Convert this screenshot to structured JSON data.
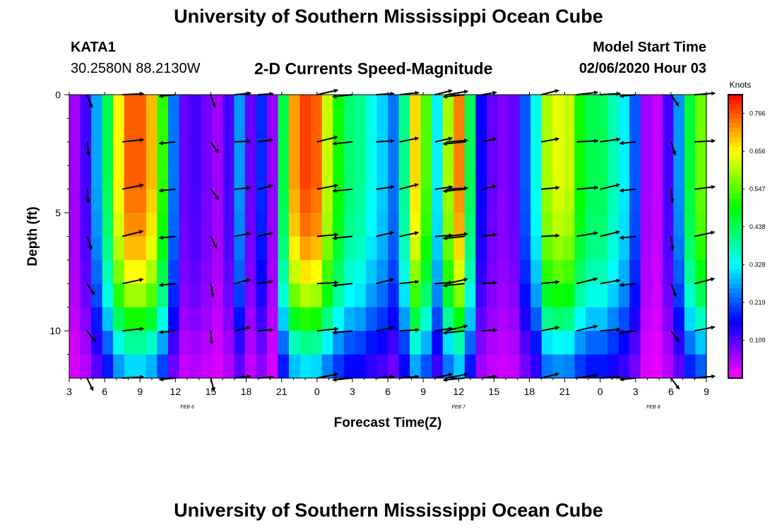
{
  "header": {
    "title": "University of Southern Mississippi Ocean Cube",
    "station": "KATA1",
    "coordinates": "30.2580N 88.2130W",
    "subtitle": "2-D Currents Speed-Magnitude",
    "model_start_label": "Model Start Time",
    "model_start_value": "02/06/2020 Hour 03"
  },
  "footer": {
    "title": "University of Southern Mississippi Ocean Cube"
  },
  "chart_data": {
    "type": "heatmap",
    "xlabel": "Forecast Time(Z)",
    "ylabel": "Depth (ft)",
    "colorbar_label": "Knots",
    "colorbar_ticks": [
      "0.109",
      "0.219",
      "0.328",
      "0.438",
      "0.547",
      "0.656",
      "0.766"
    ],
    "colorbar_range": [
      0,
      0.82
    ],
    "x_tick_labels": [
      "3",
      "6",
      "9",
      "12",
      "15",
      "18",
      "21",
      "0",
      "3",
      "6",
      "9",
      "12",
      "15",
      "18",
      "21",
      "0",
      "3",
      "6",
      "9"
    ],
    "x_range_hours": [
      0,
      54
    ],
    "day_labels": [
      {
        "text": "FEB 6",
        "hour": 10
      },
      {
        "text": "FEB 7",
        "hour": 33
      },
      {
        "text": "FEB 8",
        "hour": 49.5
      }
    ],
    "y_tick_labels": [
      "0",
      "5",
      "10"
    ],
    "y_ticks_ft": [
      0,
      5,
      10
    ],
    "y_range_ft": [
      0,
      12
    ],
    "speed_profile_knots": [
      0.06,
      0.12,
      0.27,
      0.44,
      0.66,
      0.76,
      0.76,
      0.7,
      0.52,
      0.24,
      0.1,
      0.12,
      0.09,
      0.06,
      0.12,
      0.26,
      0.1,
      0.19,
      0.07,
      0.45,
      0.72,
      0.78,
      0.76,
      0.62,
      0.5,
      0.42,
      0.4,
      0.34,
      0.3,
      0.24,
      0.4,
      0.68,
      0.54,
      0.32,
      0.6,
      0.74,
      0.44,
      0.16,
      0.1,
      0.08,
      0.1,
      0.22,
      0.34,
      0.6,
      0.64,
      0.62,
      0.5,
      0.44,
      0.44,
      0.38,
      0.32,
      0.22,
      0.06,
      0.04,
      0.12,
      0.26,
      0.46,
      0.56
    ],
    "depth_factors": [
      1.0,
      1.0,
      1.0,
      1.0,
      0.98,
      0.96,
      0.92,
      0.86,
      0.78,
      0.66,
      0.52,
      0.4
    ],
    "vector_columns_hours": [
      1.5,
      4.5,
      9,
      12,
      14,
      16,
      21,
      24,
      26,
      28,
      31,
      32,
      33.5,
      35,
      40,
      43,
      45,
      48,
      51,
      53
    ],
    "vector_rows_ft": [
      0,
      2,
      4,
      6,
      8,
      10,
      12
    ]
  }
}
